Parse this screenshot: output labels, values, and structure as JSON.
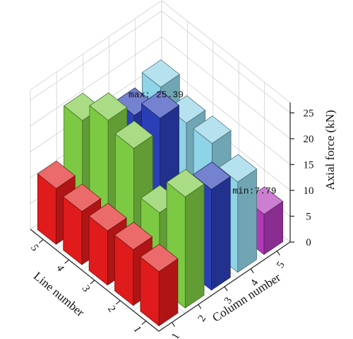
{
  "chart_data": {
    "type": "bar3d",
    "title": "",
    "x_label": "Column number",
    "y_label": "Line number",
    "z_label": "Axial force (kN)",
    "x_ticks": [
      "1",
      "2",
      "3",
      "4",
      "5"
    ],
    "y_ticks": [
      "1",
      "2",
      "3",
      "4",
      "5"
    ],
    "z_ticks": [
      "0",
      "5",
      "10",
      "15",
      "20",
      "25"
    ],
    "zlim": [
      0,
      27
    ],
    "column_colors": {
      "1": "#e01b1b",
      "2": "#7cc943",
      "3": "#2a3fb5",
      "4": "#8fd3e6",
      "5": "#b03ab8"
    },
    "bars": [
      {
        "line": 1,
        "column": 1,
        "value": 10.5
      },
      {
        "line": 2,
        "column": 1,
        "value": 10.8
      },
      {
        "line": 3,
        "column": 1,
        "value": 10.5
      },
      {
        "line": 4,
        "column": 1,
        "value": 10.3
      },
      {
        "line": 5,
        "column": 1,
        "value": 10.8
      },
      {
        "line": 1,
        "column": 2,
        "value": 21.5
      },
      {
        "line": 2,
        "column": 2,
        "value": 14.5
      },
      {
        "line": 3,
        "column": 2,
        "value": 23.0
      },
      {
        "line": 4,
        "column": 2,
        "value": 24.5
      },
      {
        "line": 5,
        "column": 2,
        "value": 20.5
      },
      {
        "line": 1,
        "column": 3,
        "value": 19.5
      },
      {
        "line": 2,
        "column": 3,
        "value": 12.0
      },
      {
        "line": 3,
        "column": 3,
        "value": 25.39
      },
      {
        "line": 4,
        "column": 3,
        "value": 22.0
      },
      {
        "line": 1,
        "column": 4,
        "value": 17.5
      },
      {
        "line": 2,
        "column": 4,
        "value": 21.0
      },
      {
        "line": 3,
        "column": 4,
        "value": 21.0
      },
      {
        "line": 4,
        "column": 4,
        "value": 24.0
      },
      {
        "line": 1,
        "column": 5,
        "value": 7.79
      }
    ],
    "annotations": [
      {
        "text": "max: 25.39",
        "line": 3,
        "column": 3
      },
      {
        "text": "min:7.79",
        "line": 1,
        "column": 5
      }
    ]
  }
}
